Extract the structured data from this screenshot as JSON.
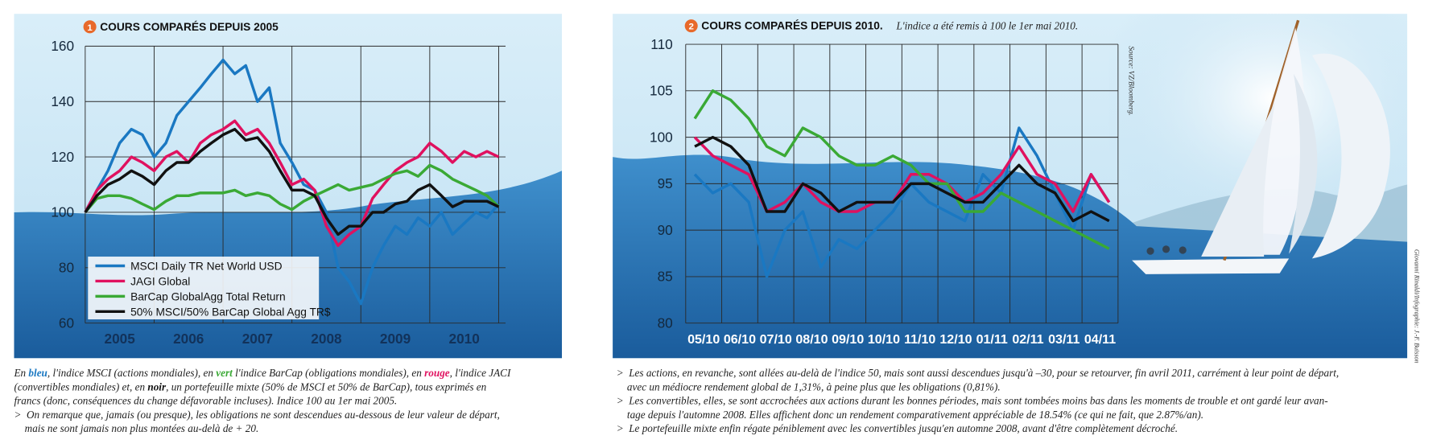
{
  "chart_data": [
    {
      "type": "line",
      "badge": "1",
      "title": "COURS COMPARÉS DEPUIS 2005",
      "categories": [
        "2005",
        "2006",
        "2007",
        "2008",
        "2009",
        "2010"
      ],
      "x": [
        2005,
        2005.17,
        2005.33,
        2005.5,
        2005.67,
        2005.83,
        2006,
        2006.17,
        2006.33,
        2006.5,
        2006.67,
        2006.83,
        2007,
        2007.17,
        2007.33,
        2007.5,
        2007.67,
        2007.83,
        2008,
        2008.17,
        2008.33,
        2008.5,
        2008.67,
        2008.83,
        2009,
        2009.17,
        2009.33,
        2009.5,
        2009.67,
        2009.83,
        2010,
        2010.17,
        2010.33,
        2010.5,
        2010.67,
        2010.83,
        2011
      ],
      "xlim": [
        2005,
        2011.1
      ],
      "ylim": [
        60,
        160
      ],
      "yticks": [
        60,
        80,
        100,
        120,
        140,
        160
      ],
      "grid": true,
      "legend": "lower left",
      "series": [
        {
          "name": "MSCI Daily TR Net World USD",
          "color": "#1a78c2",
          "values": [
            100,
            108,
            115,
            125,
            130,
            128,
            120,
            125,
            135,
            140,
            145,
            150,
            155,
            150,
            153,
            140,
            145,
            125,
            118,
            110,
            108,
            100,
            80,
            75,
            67,
            80,
            88,
            95,
            92,
            98,
            95,
            100,
            92,
            96,
            100,
            98,
            103
          ]
        },
        {
          "name": "JAGI Global",
          "color": "#e0115f",
          "values": [
            100,
            108,
            112,
            115,
            120,
            118,
            115,
            120,
            122,
            118,
            125,
            128,
            130,
            133,
            128,
            130,
            125,
            118,
            110,
            112,
            108,
            95,
            88,
            92,
            95,
            105,
            110,
            115,
            118,
            120,
            125,
            122,
            118,
            122,
            120,
            122,
            120
          ]
        },
        {
          "name": "BarCap GlobalAgg Total Return",
          "color": "#3aa935",
          "values": [
            100,
            105,
            106,
            106,
            105,
            103,
            101,
            104,
            106,
            106,
            107,
            107,
            107,
            108,
            106,
            107,
            106,
            103,
            101,
            104,
            106,
            108,
            110,
            108,
            109,
            110,
            112,
            114,
            115,
            113,
            117,
            115,
            112,
            110,
            108,
            106,
            102
          ]
        },
        {
          "name": "50% MSCI/50% BarCap Global Agg TR$",
          "color": "#111111",
          "values": [
            100,
            106,
            110,
            112,
            115,
            113,
            110,
            115,
            118,
            118,
            122,
            125,
            128,
            130,
            126,
            127,
            122,
            115,
            108,
            108,
            106,
            98,
            92,
            95,
            95,
            100,
            100,
            103,
            104,
            108,
            110,
            106,
            102,
            104,
            104,
            104,
            102
          ]
        }
      ],
      "caption": [
        [
          "En ",
          "bleu",
          ", l'indice MSCI (actions mondiales), en ",
          "vert",
          " l'indice BarCap (obligations mondiales), en ",
          "rouge",
          ", l'indice JACI"
        ],
        [
          "(convertibles mondiales) et, en ",
          "noir",
          ", un portefeuille mixte (50% de MSCI et 50% de BarCap), tous exprimés en"
        ],
        [
          "francs (donc, conséquences du change défavorable incluses). Indice 100 au 1er mai 2005."
        ],
        [
          ">  On remarque que, jamais (ou presque), les obligations ne sont descendues au-dessous de leur valeur de départ,"
        ],
        [
          "    mais ne sont jamais non plus montées au-delà de + 20."
        ]
      ]
    },
    {
      "type": "line",
      "badge": "2",
      "title": "COURS COMPARÉS DEPUIS 2010.",
      "subtitle": "L'indice  a été remis à 100 le 1er mai 2010.",
      "categories": [
        "05/10",
        null,
        "06/10",
        null,
        "07/10",
        null,
        "08/10",
        null,
        "09/10",
        null,
        "10/10",
        null,
        "11/10",
        null,
        "12/10",
        null,
        "01/11",
        null,
        "02/11",
        null,
        "03/11",
        null,
        "04/11",
        null
      ],
      "ylim": [
        80,
        110
      ],
      "yticks": [
        80,
        85,
        90,
        95,
        100,
        105,
        110
      ],
      "grid": true,
      "series": [
        {
          "color": "#1a78c2",
          "values": [
            96,
            94,
            95,
            93,
            85,
            90,
            92,
            86,
            89,
            88,
            90,
            92,
            95,
            93,
            92,
            91,
            96,
            94,
            101,
            98,
            94,
            90,
            96,
            93
          ]
        },
        {
          "color": "#e0115f",
          "values": [
            100,
            98,
            97,
            96,
            92,
            93,
            95,
            93,
            92,
            92,
            93,
            93,
            96,
            96,
            95,
            93,
            94,
            96,
            99,
            96,
            95,
            92,
            96,
            93
          ]
        },
        {
          "color": "#3aa935",
          "values": [
            102,
            105,
            104,
            102,
            99,
            98,
            101,
            100,
            98,
            97,
            97,
            98,
            97,
            95,
            95,
            92,
            92,
            94,
            93,
            92,
            91,
            90,
            89,
            88
          ]
        },
        {
          "color": "#111111",
          "values": [
            99,
            100,
            99,
            97,
            92,
            92,
            95,
            94,
            92,
            93,
            93,
            93,
            95,
            95,
            94,
            93,
            93,
            95,
            97,
            95,
            94,
            91,
            92,
            91
          ]
        }
      ],
      "source": "Source: VZ/Bloomberg.",
      "credit": "Giovanni Rinaldi/Infographie: J.-F. Buisson",
      "caption": [
        [
          ">  Les actions, en revanche, sont allées au-delà de l'indice 50, mais sont aussi descendues jusqu'à –30, pour se retourver, fin avril 2011, carrément à leur point de départ,"
        ],
        [
          "    avec un médiocre rendement global de 1,31%, à peine plus que les obligations (0,81%)."
        ],
        [
          ">  Les convertibles, elles, se sont accrochées aux actions durant les bonnes périodes, mais sont tombées moins bas dans les moments de trouble et ont gardé leur avan-"
        ],
        [
          "    tage depuis l'automne 2008. Elles affichent donc un rendement comparativement appréciable de 18.54% (ce qui ne fait, que 2.87%/an)."
        ],
        [
          ">  Le portefeuille mixte enfin régate péniblement avec les convertibles jusqu'en automne 2008, avant d'être complètement décroché."
        ]
      ]
    }
  ]
}
